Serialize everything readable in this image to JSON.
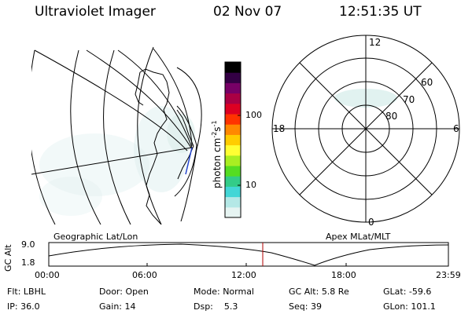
{
  "header": {
    "title": "Ultraviolet Imager",
    "date": "02 Nov 07",
    "time": "12:51:35 UT"
  },
  "colorbar": {
    "ticks": [
      "100",
      "10"
    ],
    "label": "photon cm",
    "sup1": "-2",
    "label_s": "s",
    "sup2": "-1"
  },
  "left_panel": {
    "caption": "Geographic Lat/Lon"
  },
  "right_panel": {
    "caption": "Apex MLat/MLT",
    "mlt_labels": {
      "top": "12",
      "left": "18",
      "right": "6",
      "bottom": "0"
    },
    "lat_labels": [
      "60",
      "70",
      "80"
    ]
  },
  "altitude_strip": {
    "axis_label": "GC Alt",
    "y_ticks": [
      "9.0",
      "1.8"
    ],
    "x_ticks": [
      "00:00",
      "06:00",
      "12:00",
      "18:00",
      "23:59"
    ]
  },
  "status": {
    "row1": [
      {
        "label": "Flt:",
        "value": "LBHL"
      },
      {
        "label": "Door:",
        "value": "Open"
      },
      {
        "label": "Mode:",
        "value": "Normal"
      },
      {
        "label": "GC Alt:",
        "value": "5.8 Re"
      },
      {
        "label": "GLat:",
        "value": "-59.6"
      }
    ],
    "row2": [
      {
        "label": "IP:",
        "value": "36.0"
      },
      {
        "label": "Gain:",
        "value": "14"
      },
      {
        "label": "Dsp:",
        "value": "5.3"
      },
      {
        "label": "Seq:",
        "value": "39"
      },
      {
        "label": "GLon:",
        "value": "101.1"
      }
    ]
  },
  "colors": {
    "colorbar": [
      "#e6f4f2",
      "#b4e8e6",
      "#43d6d6",
      "#33cc88",
      "#55dd22",
      "#aaee22",
      "#ffff33",
      "#ffcc00",
      "#ff8800",
      "#ff3300",
      "#dd0022",
      "#aa0044",
      "#770066",
      "#330044",
      "#000000"
    ],
    "current_time_marker": "#b00000"
  }
}
